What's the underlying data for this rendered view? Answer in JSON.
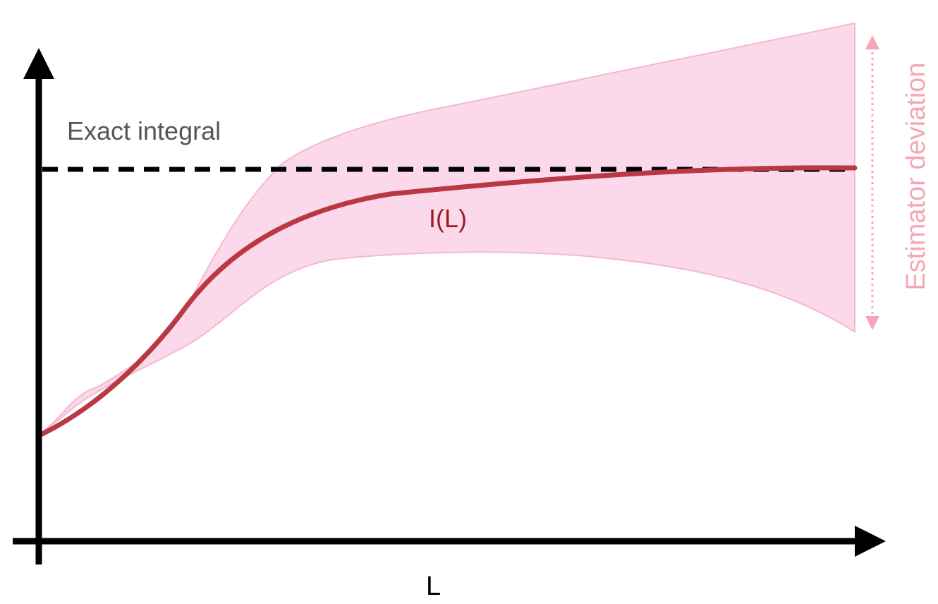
{
  "labels": {
    "exact_integral": "Exact integral",
    "curve": "I(L)",
    "x_axis": "L",
    "deviation": "Estimator deviation"
  },
  "colors": {
    "axis": "#000000",
    "reference_line": "#000000",
    "curve": "#b83843",
    "band_fill": "#fbd5e8",
    "band_stroke": "#f6b6d3",
    "deviation": "#f7a6b8",
    "exact_integral_text": "#555555",
    "curve_text": "#9a1c1c"
  }
}
